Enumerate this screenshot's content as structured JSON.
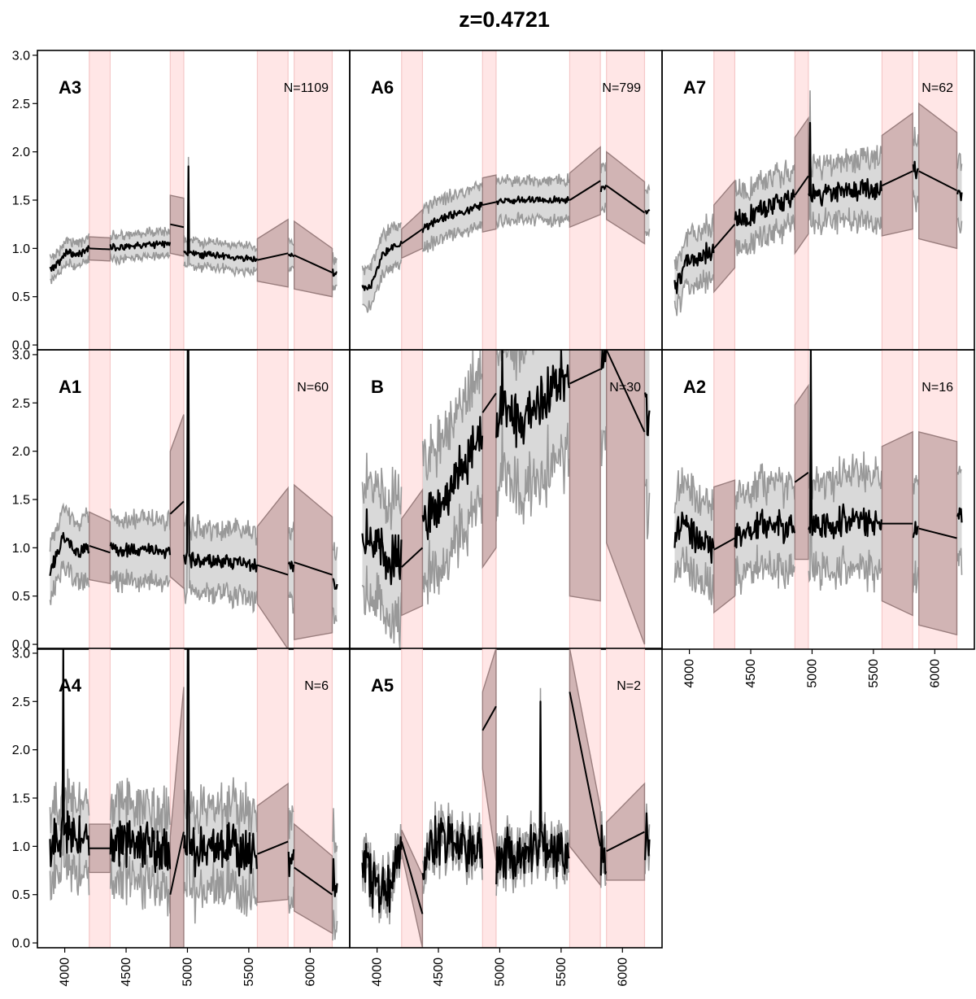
{
  "figure": {
    "title": "z=0.4721"
  },
  "chart_data": {
    "type": "line",
    "title": "z=0.4721",
    "xlabel": "",
    "ylabel": "",
    "xlim": [
      3870,
      6230
    ],
    "ylim": [
      -0.05,
      3.05
    ],
    "x_ticks": [
      4000,
      4500,
      5000,
      5500,
      6000
    ],
    "x_tick_labels": [
      "4000",
      "4500",
      "5000",
      "5500",
      "6000"
    ],
    "y_ticks": [
      0.0,
      0.5,
      1.0,
      1.5,
      2.0,
      2.5,
      3.0
    ],
    "y_tick_labels": [
      "0.0",
      "0.5",
      "1.0",
      "1.5",
      "2.0",
      "2.5",
      "3.0"
    ],
    "masked_regions": [
      [
        4200,
        4370
      ],
      [
        4860,
        4970
      ],
      [
        5570,
        5820
      ],
      [
        5870,
        6180
      ]
    ],
    "colors": {
      "mean_line": "#000000",
      "spread_band": "#d9d9d9",
      "spread_edge": "#999999",
      "interp_band": "#c9aaaa",
      "interp_edge": "#9a7e7e",
      "mask": "#ffe6e6",
      "mask_edge": "#f5c8c8"
    },
    "grid": "off",
    "legend": "none",
    "panels": [
      {
        "label": "A3",
        "n_text": "N=1109",
        "row": 0,
        "col": 0,
        "base": 1.0,
        "tilt": -0.2,
        "noise": 0.03,
        "spread": 0.12,
        "spread_growth": 0.15,
        "anchors": [
          [
            3880,
            0.78
          ],
          [
            3960,
            0.86
          ],
          [
            4020,
            0.98
          ],
          [
            4100,
            0.92
          ],
          [
            4200,
            1.0
          ],
          [
            4500,
            1.02
          ],
          [
            4860,
            1.05
          ],
          [
            5000,
            0.95
          ],
          [
            5570,
            0.88
          ],
          [
            5870,
            0.93
          ],
          [
            6200,
            0.75
          ]
        ],
        "spikes": [
          [
            5010,
            1.85
          ]
        ],
        "interp": [
          [
            4200,
            4370,
            1.0,
            0.99,
            0.12,
            0.12
          ],
          [
            4860,
            4970,
            1.25,
            1.22,
            0.3,
            0.3
          ],
          [
            5570,
            5820,
            0.88,
            0.95,
            0.22,
            0.35
          ],
          [
            5870,
            6180,
            0.93,
            0.75,
            0.35,
            0.25
          ]
        ]
      },
      {
        "label": "A6",
        "n_text": "N=799",
        "row": 0,
        "col": 1,
        "base": 1.0,
        "tilt": 0.0,
        "noise": 0.03,
        "spread": 0.2,
        "spread_growth": 0.1,
        "anchors": [
          [
            3880,
            0.6
          ],
          [
            3950,
            0.6
          ],
          [
            4050,
            0.95
          ],
          [
            4200,
            1.05
          ],
          [
            4370,
            1.2
          ],
          [
            4500,
            1.3
          ],
          [
            4860,
            1.45
          ],
          [
            5000,
            1.5
          ],
          [
            5570,
            1.5
          ],
          [
            5870,
            1.65
          ],
          [
            6200,
            1.37
          ]
        ],
        "spikes": [],
        "interp": [
          [
            4200,
            4370,
            1.05,
            1.2,
            0.15,
            0.2
          ],
          [
            4860,
            4970,
            1.45,
            1.48,
            0.28,
            0.28
          ],
          [
            5570,
            5820,
            1.5,
            1.7,
            0.28,
            0.35
          ],
          [
            5870,
            6180,
            1.65,
            1.37,
            0.35,
            0.32
          ]
        ]
      },
      {
        "label": "A7",
        "n_text": "N=62",
        "row": 0,
        "col": 2,
        "base": 1.0,
        "tilt": 0.0,
        "noise": 0.09,
        "spread": 0.25,
        "spread_growth": 0.4,
        "anchors": [
          [
            3880,
            0.55
          ],
          [
            3980,
            0.85
          ],
          [
            4200,
            1.0
          ],
          [
            4370,
            1.25
          ],
          [
            4600,
            1.4
          ],
          [
            4860,
            1.55
          ],
          [
            5000,
            1.55
          ],
          [
            5300,
            1.6
          ],
          [
            5570,
            1.62
          ],
          [
            5870,
            1.8
          ],
          [
            6200,
            1.6
          ]
        ],
        "spikes": [
          [
            4985,
            2.3
          ]
        ],
        "interp": [
          [
            4200,
            4370,
            1.0,
            1.25,
            0.45,
            0.45
          ],
          [
            4860,
            4970,
            1.55,
            1.75,
            0.6,
            0.6
          ],
          [
            5570,
            5820,
            1.65,
            1.8,
            0.52,
            0.6
          ],
          [
            5870,
            6180,
            1.8,
            1.6,
            0.7,
            0.6
          ]
        ]
      },
      {
        "label": "A1",
        "n_text": "N=60",
        "row": 1,
        "col": 0,
        "base": 1.0,
        "tilt": -0.15,
        "noise": 0.06,
        "spread": 0.3,
        "spread_growth": 0.25,
        "anchors": [
          [
            3880,
            0.75
          ],
          [
            3990,
            1.12
          ],
          [
            4100,
            0.95
          ],
          [
            4200,
            1.02
          ],
          [
            4500,
            0.98
          ],
          [
            4860,
            0.96
          ],
          [
            5000,
            0.88
          ],
          [
            5570,
            0.82
          ],
          [
            5870,
            0.8
          ],
          [
            6200,
            0.62
          ]
        ],
        "spikes": [
          [
            5005,
            3.05
          ]
        ],
        "interp": [
          [
            4200,
            4370,
            1.02,
            0.95,
            0.35,
            0.32
          ],
          [
            4860,
            4970,
            1.35,
            1.48,
            0.65,
            0.9
          ],
          [
            5570,
            5820,
            0.82,
            0.72,
            0.4,
            0.9
          ],
          [
            5870,
            6180,
            0.85,
            0.72,
            0.8,
            0.6
          ]
        ]
      },
      {
        "label": "B",
        "n_text": "N=30",
        "row": 1,
        "col": 1,
        "base": 1.0,
        "tilt": 0.0,
        "noise": 0.22,
        "spread": 0.55,
        "spread_growth": 0.6,
        "anchors": [
          [
            3880,
            1.2
          ],
          [
            4000,
            1.0
          ],
          [
            4200,
            0.85
          ],
          [
            4370,
            1.25
          ],
          [
            4600,
            1.6
          ],
          [
            4860,
            2.2
          ],
          [
            5000,
            2.4
          ],
          [
            5200,
            2.3
          ],
          [
            5570,
            2.8
          ],
          [
            5870,
            2.85
          ],
          [
            6200,
            2.4
          ]
        ],
        "spikes": [
          [
            4870,
            3.05
          ],
          [
            5020,
            3.05
          ],
          [
            5500,
            3.05
          ]
        ],
        "interp": [
          [
            4200,
            4370,
            0.8,
            1.0,
            0.5,
            0.6
          ],
          [
            4860,
            4970,
            2.4,
            2.6,
            1.6,
            1.6
          ],
          [
            5570,
            5820,
            2.7,
            2.85,
            2.2,
            2.4
          ],
          [
            5870,
            6180,
            3.05,
            2.2,
            2.0,
            2.2
          ]
        ]
      },
      {
        "label": "A2",
        "n_text": "N=16",
        "row": 1,
        "col": 2,
        "base": 1.0,
        "tilt": 0.0,
        "noise": 0.12,
        "spread": 0.4,
        "spread_growth": 0.3,
        "anchors": [
          [
            3880,
            1.1
          ],
          [
            3950,
            1.3
          ],
          [
            4100,
            1.0
          ],
          [
            4200,
            0.98
          ],
          [
            4370,
            1.1
          ],
          [
            4600,
            1.25
          ],
          [
            4860,
            1.2
          ],
          [
            5000,
            1.2
          ],
          [
            5300,
            1.3
          ],
          [
            5570,
            1.25
          ],
          [
            5870,
            1.2
          ],
          [
            6200,
            1.4
          ]
        ],
        "spikes": [
          [
            4990,
            3.05
          ]
        ],
        "interp": [
          [
            4200,
            4370,
            0.98,
            1.1,
            0.65,
            0.6
          ],
          [
            4860,
            4970,
            1.68,
            1.78,
            0.8,
            0.9
          ],
          [
            5570,
            5820,
            1.25,
            1.25,
            0.8,
            0.95
          ],
          [
            5870,
            6180,
            1.2,
            1.1,
            1.0,
            1.0
          ]
        ]
      },
      {
        "label": "A4",
        "n_text": "N=6",
        "row": 2,
        "col": 0,
        "base": 1.0,
        "tilt": 0.0,
        "noise": 0.2,
        "spread": 0.35,
        "spread_growth": 0.3,
        "anchors": [
          [
            3880,
            1.0
          ],
          [
            3960,
            1.1
          ],
          [
            4050,
            1.15
          ],
          [
            4200,
            0.98
          ],
          [
            4370,
            1.05
          ],
          [
            4600,
            1.05
          ],
          [
            4860,
            0.95
          ],
          [
            5000,
            0.95
          ],
          [
            5300,
            1.0
          ],
          [
            5570,
            0.92
          ],
          [
            5870,
            0.8
          ],
          [
            6200,
            0.7
          ]
        ],
        "spikes": [
          [
            3990,
            3.05
          ],
          [
            5005,
            3.05
          ]
        ],
        "interp": [
          [
            4200,
            4370,
            0.98,
            0.98,
            0.25,
            0.25
          ],
          [
            4860,
            4970,
            0.5,
            1.15,
            0.6,
            1.5
          ],
          [
            5570,
            5820,
            0.92,
            1.05,
            0.5,
            0.6
          ],
          [
            5870,
            6180,
            0.78,
            0.5,
            0.45,
            0.4
          ]
        ]
      },
      {
        "label": "A5",
        "n_text": "N=2",
        "row": 2,
        "col": 1,
        "base": 1.0,
        "tilt": 0.0,
        "noise": 0.22,
        "spread": 0.12,
        "spread_growth": 0.1,
        "anchors": [
          [
            3880,
            0.9
          ],
          [
            4000,
            0.5
          ],
          [
            4100,
            0.6
          ],
          [
            4200,
            1.05
          ],
          [
            4370,
            0.8
          ],
          [
            4500,
            1.1
          ],
          [
            4700,
            1.0
          ],
          [
            4860,
            0.95
          ],
          [
            5000,
            0.9
          ],
          [
            5300,
            1.0
          ],
          [
            5570,
            0.9
          ],
          [
            5870,
            1.0
          ],
          [
            6200,
            1.1
          ]
        ],
        "spikes": [
          [
            4920,
            3.05
          ],
          [
            5330,
            2.5
          ]
        ],
        "interp": [
          [
            4200,
            4370,
            1.05,
            0.3,
            0.12,
            0.4
          ],
          [
            4860,
            4970,
            2.2,
            2.45,
            0.4,
            1.6
          ],
          [
            5570,
            5820,
            2.6,
            1.0,
            1.6,
            0.4
          ],
          [
            5870,
            6180,
            0.95,
            1.15,
            0.3,
            0.5
          ]
        ]
      }
    ]
  }
}
